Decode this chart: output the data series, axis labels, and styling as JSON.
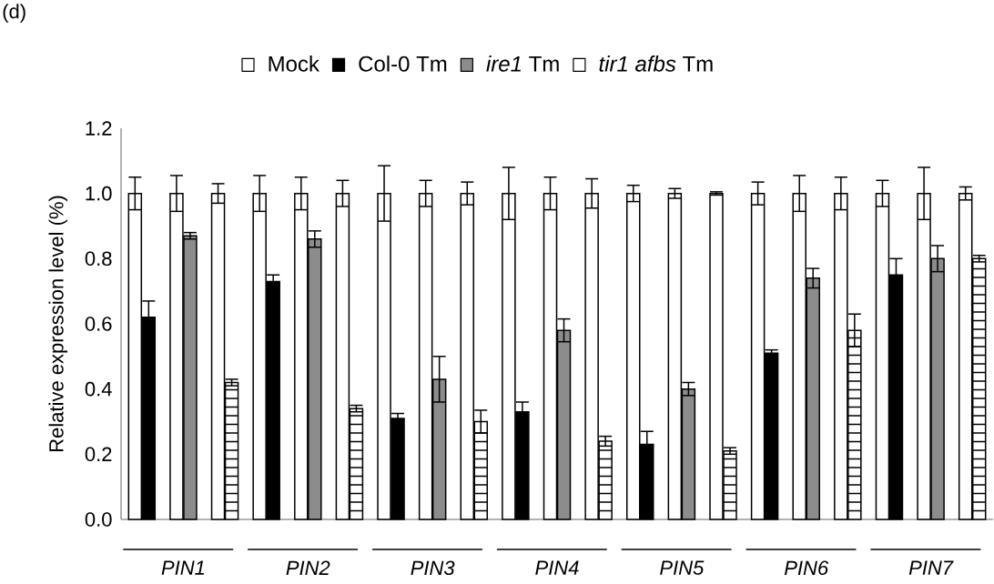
{
  "chart_data": {
    "type": "bar",
    "ylabel": "Relative expression level (%)",
    "annotations": [
      "(d)"
    ],
    "categories": [
      null,
      "PIN1",
      null,
      null,
      "PIN2",
      null,
      null,
      "PIN3",
      null,
      null,
      "PIN4",
      null,
      null,
      "PIN5",
      null,
      null,
      "PIN6",
      null,
      null,
      "PIN7",
      null
    ],
    "series": [
      {
        "name": "Mock",
        "color": "#ffffff",
        "values": [
          1,
          1,
          1,
          1,
          1,
          1,
          1,
          1,
          1,
          1,
          1,
          1,
          1,
          1,
          1,
          1,
          1,
          1,
          1,
          1,
          1
        ],
        "errors": [
          0.05,
          0.055,
          0.03,
          0.055,
          0.05,
          0.04,
          0.085,
          0.04,
          0.035,
          0.08,
          0.05,
          0.045,
          0.025,
          0.015,
          0.005,
          0.035,
          0.055,
          0.05,
          0.04,
          0.08,
          0.02
        ]
      },
      {
        "name": "Col-0 Tm",
        "color": "#000000",
        "values": [
          0.62,
          null,
          null,
          0.73,
          null,
          null,
          0.31,
          null,
          null,
          0.33,
          null,
          null,
          0.23,
          null,
          null,
          0.51,
          null,
          null,
          0.75,
          null,
          null
        ],
        "errors": [
          0.05,
          null,
          null,
          0.02,
          null,
          null,
          0.015,
          null,
          null,
          0.03,
          null,
          null,
          0.04,
          null,
          null,
          0.01,
          null,
          null,
          0.05,
          null,
          null
        ]
      },
      {
        "name": "*ire1* Tm",
        "color": "#8c8c8c",
        "values": [
          null,
          0.87,
          null,
          null,
          0.86,
          null,
          null,
          0.43,
          null,
          null,
          0.58,
          null,
          null,
          0.4,
          null,
          null,
          0.74,
          null,
          null,
          0.8,
          null
        ],
        "errors": [
          null,
          0.01,
          null,
          null,
          0.025,
          null,
          null,
          0.07,
          null,
          null,
          0.035,
          null,
          null,
          0.02,
          null,
          null,
          0.03,
          null,
          null,
          0.04,
          null
        ]
      },
      {
        "name": "*tir1 afbs* Tm",
        "color": "#000000",
        "values": [
          null,
          null,
          0.42,
          null,
          null,
          0.34,
          null,
          null,
          0.3,
          null,
          null,
          0.24,
          null,
          null,
          0.21,
          null,
          null,
          0.58,
          null,
          null,
          0.8
        ],
        "errors": [
          null,
          null,
          0.01,
          null,
          null,
          0.01,
          null,
          null,
          0.035,
          null,
          null,
          0.015,
          null,
          null,
          0.01,
          null,
          null,
          0.05,
          null,
          null,
          0.01
        ]
      }
    ],
    "ylim": [
      0,
      1.2
    ],
    "yticks": [
      {
        "value": 0,
        "label": "0.0"
      },
      {
        "value": 0.2,
        "label": "0.2"
      },
      {
        "value": 0.4,
        "label": "0.4"
      },
      {
        "value": 0.6,
        "label": "0.6"
      },
      {
        "value": 0.8,
        "label": "0.8"
      },
      {
        "value": 1.0,
        "label": "1.0"
      },
      {
        "value": 1.2,
        "label": "1.2"
      }
    ],
    "legend": "top",
    "grid": false
  }
}
